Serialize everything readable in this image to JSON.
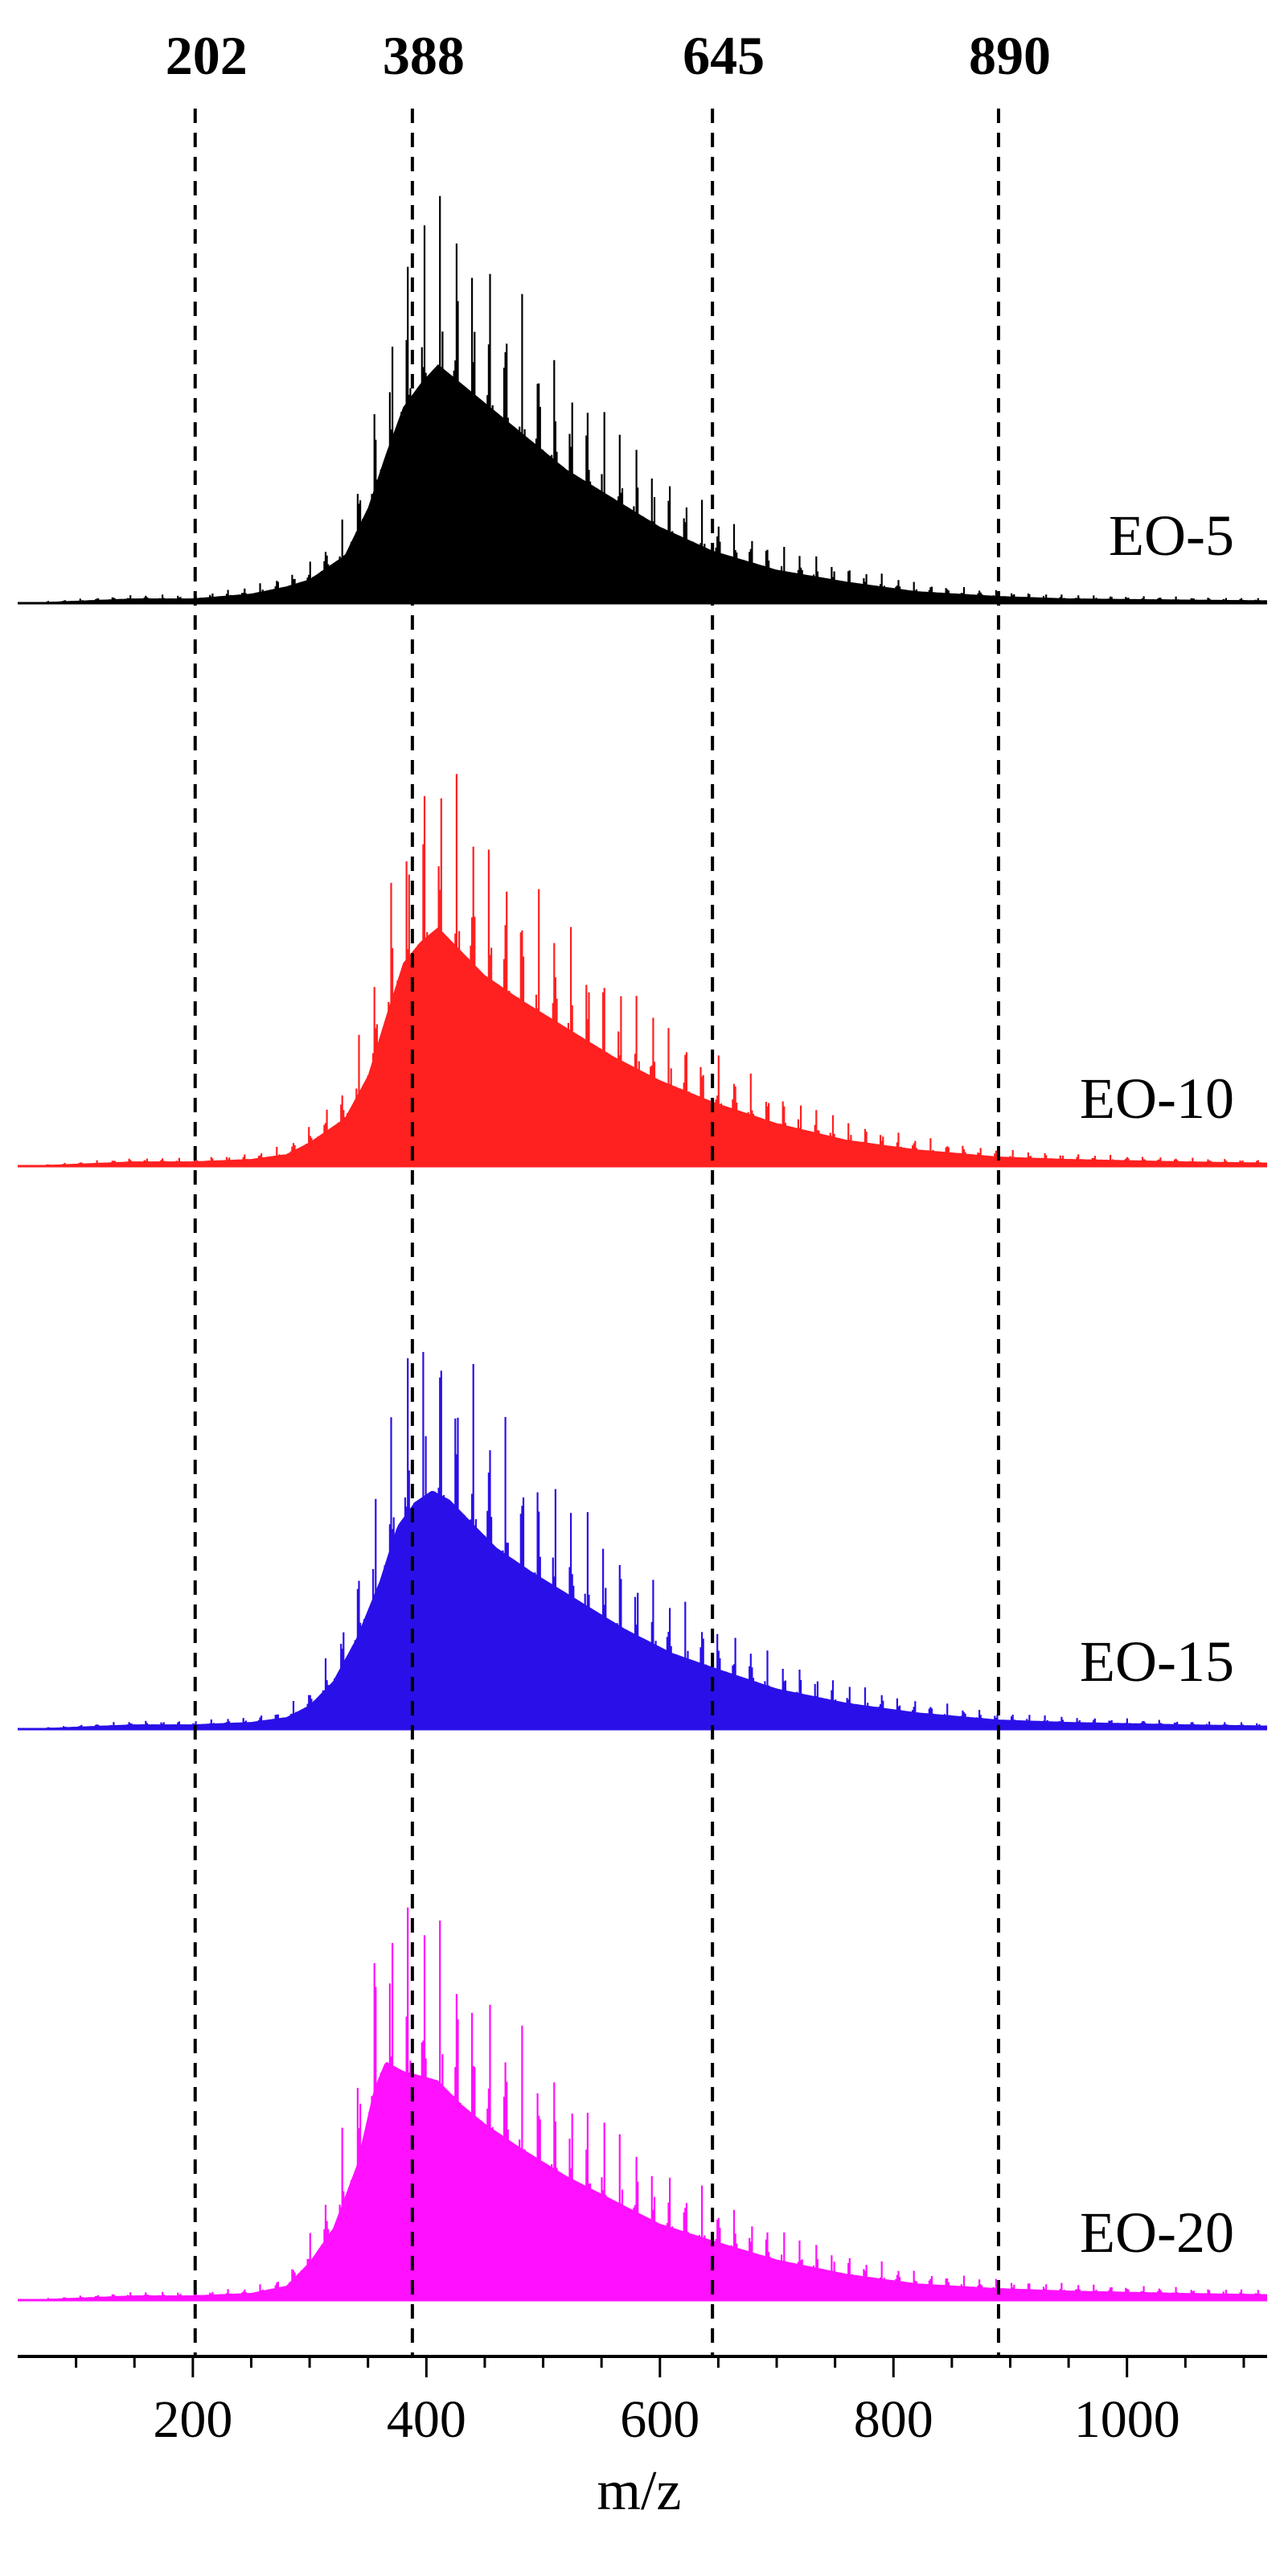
{
  "chart_data": {
    "type": "line",
    "title": "",
    "xlabel": "m/z",
    "ylabel": "",
    "xlim": [
      50,
      1120
    ],
    "x_major_ticks": [
      200,
      400,
      600,
      800,
      1000
    ],
    "x_minor_step": 50,
    "x_tick_labels": [
      "200",
      "400",
      "600",
      "800",
      "1000"
    ],
    "reference_lines": [
      {
        "x": 202,
        "label": "202"
      },
      {
        "x": 388,
        "label": "388"
      },
      {
        "x": 645,
        "label": "645"
      },
      {
        "x": 890,
        "label": "890"
      }
    ],
    "peak_spacing": 14,
    "series": [
      {
        "name": "EO-5",
        "color": "#000000",
        "points": [
          [
            50,
            0
          ],
          [
            100,
            0.01
          ],
          [
            150,
            0.02
          ],
          [
            200,
            0.02
          ],
          [
            250,
            0.04
          ],
          [
            280,
            0.07
          ],
          [
            300,
            0.1
          ],
          [
            330,
            0.2
          ],
          [
            350,
            0.4
          ],
          [
            365,
            0.62
          ],
          [
            380,
            0.82
          ],
          [
            395,
            0.92
          ],
          [
            410,
            1.0
          ],
          [
            430,
            0.92
          ],
          [
            450,
            0.84
          ],
          [
            480,
            0.72
          ],
          [
            520,
            0.56
          ],
          [
            560,
            0.44
          ],
          [
            600,
            0.32
          ],
          [
            645,
            0.22
          ],
          [
            700,
            0.14
          ],
          [
            760,
            0.09
          ],
          [
            820,
            0.05
          ],
          [
            890,
            0.03
          ],
          [
            950,
            0.02
          ],
          [
            1050,
            0.015
          ],
          [
            1120,
            0.012
          ]
        ]
      },
      {
        "name": "EO-10",
        "color": "#ff2020",
        "points": [
          [
            50,
            0
          ],
          [
            100,
            0.01
          ],
          [
            150,
            0.02
          ],
          [
            200,
            0.02
          ],
          [
            250,
            0.03
          ],
          [
            280,
            0.05
          ],
          [
            300,
            0.1
          ],
          [
            330,
            0.2
          ],
          [
            350,
            0.38
          ],
          [
            365,
            0.62
          ],
          [
            380,
            0.85
          ],
          [
            395,
            0.94
          ],
          [
            410,
            1.0
          ],
          [
            430,
            0.9
          ],
          [
            450,
            0.8
          ],
          [
            480,
            0.7
          ],
          [
            520,
            0.58
          ],
          [
            560,
            0.46
          ],
          [
            600,
            0.36
          ],
          [
            645,
            0.27
          ],
          [
            700,
            0.18
          ],
          [
            760,
            0.11
          ],
          [
            820,
            0.07
          ],
          [
            890,
            0.04
          ],
          [
            950,
            0.03
          ],
          [
            1050,
            0.02
          ],
          [
            1120,
            0.015
          ]
        ]
      },
      {
        "name": "EO-15",
        "color": "#2a10e8",
        "points": [
          [
            50,
            0
          ],
          [
            100,
            0.01
          ],
          [
            150,
            0.02
          ],
          [
            200,
            0.02
          ],
          [
            250,
            0.03
          ],
          [
            280,
            0.05
          ],
          [
            300,
            0.1
          ],
          [
            320,
            0.2
          ],
          [
            340,
            0.38
          ],
          [
            360,
            0.62
          ],
          [
            375,
            0.85
          ],
          [
            390,
            0.95
          ],
          [
            405,
            1.0
          ],
          [
            420,
            0.96
          ],
          [
            440,
            0.86
          ],
          [
            460,
            0.76
          ],
          [
            490,
            0.66
          ],
          [
            530,
            0.54
          ],
          [
            570,
            0.42
          ],
          [
            610,
            0.32
          ],
          [
            645,
            0.26
          ],
          [
            700,
            0.17
          ],
          [
            760,
            0.11
          ],
          [
            820,
            0.07
          ],
          [
            890,
            0.04
          ],
          [
            950,
            0.03
          ],
          [
            1050,
            0.02
          ],
          [
            1120,
            0.015
          ]
        ]
      },
      {
        "name": "EO-20",
        "color": "#ff10ff",
        "points": [
          [
            50,
            0
          ],
          [
            100,
            0.01
          ],
          [
            150,
            0.02
          ],
          [
            200,
            0.02
          ],
          [
            250,
            0.03
          ],
          [
            280,
            0.06
          ],
          [
            300,
            0.16
          ],
          [
            320,
            0.3
          ],
          [
            340,
            0.56
          ],
          [
            355,
            0.88
          ],
          [
            365,
            1.0
          ],
          [
            380,
            0.96
          ],
          [
            395,
            0.94
          ],
          [
            410,
            0.92
          ],
          [
            430,
            0.82
          ],
          [
            450,
            0.74
          ],
          [
            480,
            0.64
          ],
          [
            520,
            0.52
          ],
          [
            560,
            0.42
          ],
          [
            600,
            0.32
          ],
          [
            645,
            0.25
          ],
          [
            700,
            0.17
          ],
          [
            760,
            0.11
          ],
          [
            820,
            0.07
          ],
          [
            890,
            0.05
          ],
          [
            950,
            0.04
          ],
          [
            1050,
            0.03
          ],
          [
            1120,
            0.025
          ]
        ]
      }
    ]
  }
}
